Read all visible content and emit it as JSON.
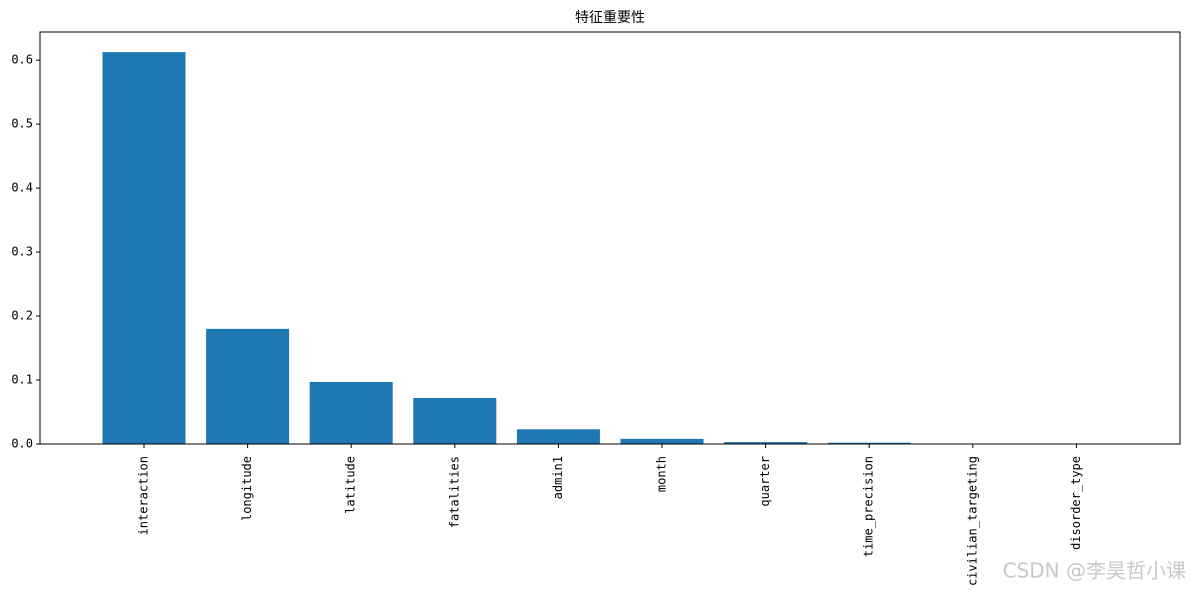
{
  "chart_data": {
    "type": "bar",
    "title": "特征重要性",
    "categories": [
      "interaction",
      "longitude",
      "latitude",
      "fatalities",
      "admin1",
      "month",
      "quarter",
      "time_precision",
      "civilian_targeting",
      "disorder_type"
    ],
    "values": [
      0.6125,
      0.18,
      0.097,
      0.072,
      0.023,
      0.008,
      0.003,
      0.002,
      0,
      0
    ],
    "color": "#1f77b4",
    "ylim": [
      0,
      0.644
    ],
    "yticks": [
      {
        "value": 0,
        "label": "0.0"
      },
      0.1,
      0.2,
      0.3,
      0.4,
      0.5,
      0.6
    ],
    "watermark": "CSDN @李昊哲小课"
  }
}
